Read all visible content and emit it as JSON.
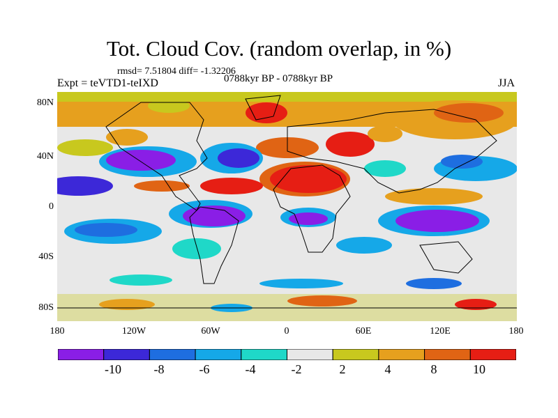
{
  "title": "Tot. Cloud Cov. (random overlap, in %)",
  "stats": "rmsd= 7.51804 diff= -1.32206",
  "experiment": "Expt = teVTD1-teIXD",
  "period": "0788kyr BP - 0788kyr BP",
  "season": "JJA",
  "map": {
    "lat_labels": [
      "80N",
      "40N",
      "0",
      "40S",
      "80S"
    ],
    "lon_labels": [
      "180",
      "120W",
      "60W",
      "0",
      "60E",
      "120E",
      "180"
    ],
    "lon_range": [
      -180,
      180
    ],
    "lat_range": [
      -90,
      90
    ]
  },
  "colorbar": {
    "colors": [
      "#8a1ee6",
      "#3c28d8",
      "#1e6ee0",
      "#15a8e8",
      "#1fd8c8",
      "#e8e8e8",
      "#c8c81e",
      "#e6a01e",
      "#e06414",
      "#e61e14"
    ],
    "labels": [
      "-10",
      "-8",
      "-6",
      "-4",
      "-2",
      "2",
      "4",
      "8",
      "10"
    ]
  }
}
